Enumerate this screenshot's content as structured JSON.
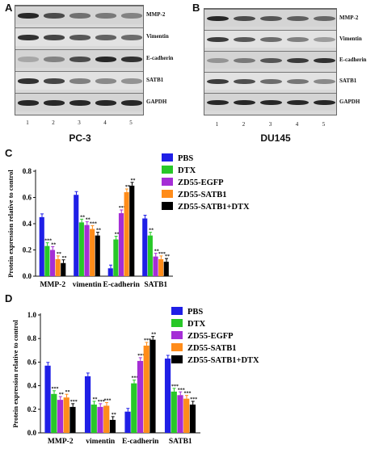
{
  "panels": {
    "A": {
      "letter": "A",
      "cell_line": "PC-3",
      "labels": [
        "MMP-2",
        "Vimentin",
        "E-cadherin",
        "SATB1",
        "GAPDH"
      ],
      "lanes": [
        "1",
        "2",
        "3",
        "4",
        "5"
      ]
    },
    "B": {
      "letter": "B",
      "cell_line": "DU145",
      "labels": [
        "MMP-2",
        "Vimentin",
        "E-cadherin",
        "SATB1",
        "GAPDH"
      ],
      "lanes": [
        "1",
        "2",
        "3",
        "4",
        "5"
      ]
    },
    "C": {
      "letter": "C"
    },
    "D": {
      "letter": "D"
    }
  },
  "series_colors": [
    "#1f1fe6",
    "#28c828",
    "#a52ed6",
    "#ff8c1a",
    "#000000"
  ],
  "chart_data": [
    {
      "type": "bar",
      "panel": "C",
      "ylabel": "Protein expression relative to control",
      "categories": [
        "MMP-2",
        "vimentin",
        "E-cadherin",
        "SATB1"
      ],
      "ylim": [
        0,
        0.8
      ],
      "yticks": [
        "0.0",
        "0.2",
        "0.4",
        "0.6",
        "0.8"
      ],
      "series": [
        {
          "name": "PBS",
          "values": [
            0.45,
            0.62,
            0.06,
            0.44
          ]
        },
        {
          "name": "DTX",
          "values": [
            0.23,
            0.41,
            0.28,
            0.31
          ]
        },
        {
          "name": "ZD55-EGFP",
          "values": [
            0.2,
            0.39,
            0.48,
            0.15
          ]
        },
        {
          "name": "ZD55-SATB1",
          "values": [
            0.13,
            0.36,
            0.64,
            0.13
          ]
        },
        {
          "name": "ZD55-SATB1+DTX",
          "values": [
            0.1,
            0.31,
            0.69,
            0.11
          ]
        }
      ],
      "significance": [
        [
          "",
          "",
          "",
          ""
        ],
        [
          "***",
          "**",
          "**",
          "**"
        ],
        [
          "**",
          "**",
          "***",
          "**"
        ],
        [
          "**",
          "***",
          "**",
          "***"
        ],
        [
          "**",
          "**",
          "**",
          "**"
        ]
      ]
    },
    {
      "type": "bar",
      "panel": "D",
      "ylabel": "Protein expression relative to control",
      "categories": [
        "MMP-2",
        "vimentin",
        "E-cadherin",
        "SATB1"
      ],
      "ylim": [
        0,
        1.0
      ],
      "yticks": [
        "0.0",
        "0.2",
        "0.4",
        "0.6",
        "0.8",
        "1.0"
      ],
      "series": [
        {
          "name": "PBS",
          "values": [
            0.57,
            0.48,
            0.18,
            0.63
          ]
        },
        {
          "name": "DTX",
          "values": [
            0.33,
            0.24,
            0.42,
            0.35
          ]
        },
        {
          "name": "ZD55-EGFP",
          "values": [
            0.28,
            0.22,
            0.61,
            0.32
          ]
        },
        {
          "name": "ZD55-SATB1",
          "values": [
            0.3,
            0.23,
            0.74,
            0.29
          ]
        },
        {
          "name": "ZD55-SATB1+DTX",
          "values": [
            0.22,
            0.11,
            0.79,
            0.24
          ]
        }
      ],
      "significance": [
        [
          "",
          "",
          "",
          ""
        ],
        [
          "***",
          "**",
          "***",
          "***"
        ],
        [
          "**",
          "***",
          "***",
          "***"
        ],
        [
          "**",
          "***",
          "***",
          "***"
        ],
        [
          "***",
          "**",
          "**",
          "***"
        ]
      ]
    }
  ]
}
